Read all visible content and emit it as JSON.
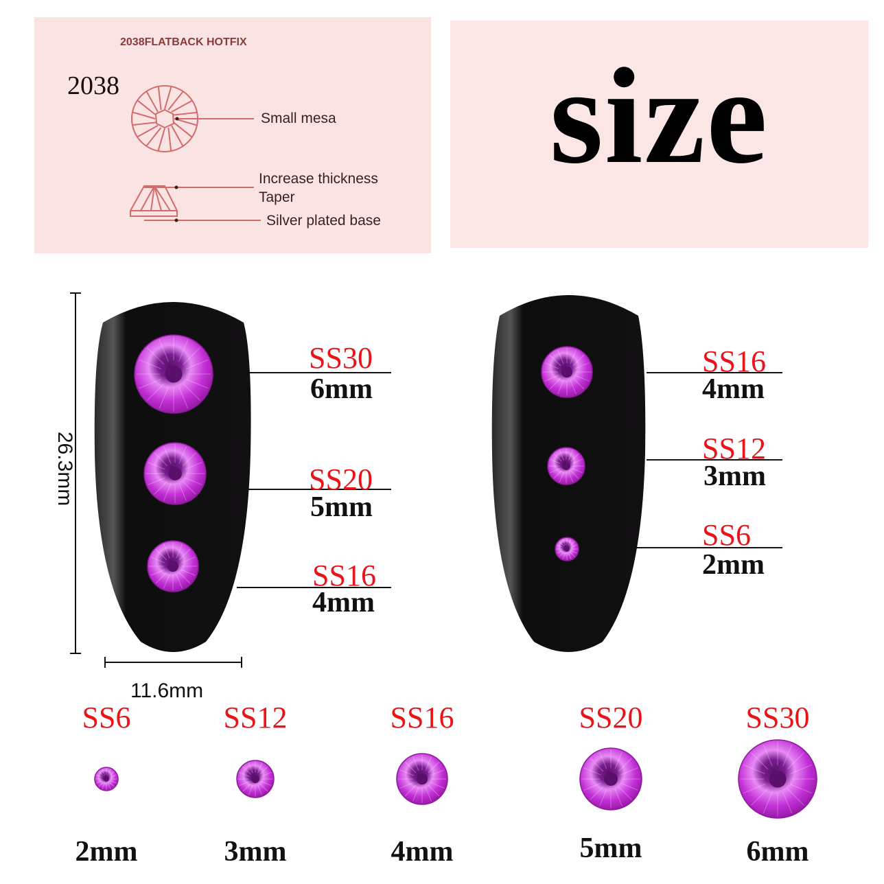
{
  "diagram": {
    "heading": "2038FLATBACK HOTFIX",
    "model": "2038",
    "labels": [
      "Small mesa",
      "Increase thickness",
      "Taper",
      "Silver plated base"
    ]
  },
  "title": "size",
  "dimensions": {
    "height": "26.3mm",
    "width": "11.6mm"
  },
  "nail_left": [
    {
      "code": "SS30",
      "size": "6mm"
    },
    {
      "code": "SS20",
      "size": "5mm"
    },
    {
      "code": "SS16",
      "size": "4mm"
    }
  ],
  "nail_right": [
    {
      "code": "SS16",
      "size": "4mm"
    },
    {
      "code": "SS12",
      "size": "3mm"
    },
    {
      "code": "SS6",
      "size": "2mm"
    }
  ],
  "size_row": [
    {
      "code": "SS6",
      "size": "2mm"
    },
    {
      "code": "SS12",
      "size": "3mm"
    },
    {
      "code": "SS16",
      "size": "4mm"
    },
    {
      "code": "SS20",
      "size": "5mm"
    },
    {
      "code": "SS30",
      "size": "6mm"
    }
  ],
  "colors": {
    "gem": "#c22fd6",
    "label_red": "#e8141a",
    "panel_pink": "#f9e3e3",
    "diagram_line": "#d46a6a"
  }
}
